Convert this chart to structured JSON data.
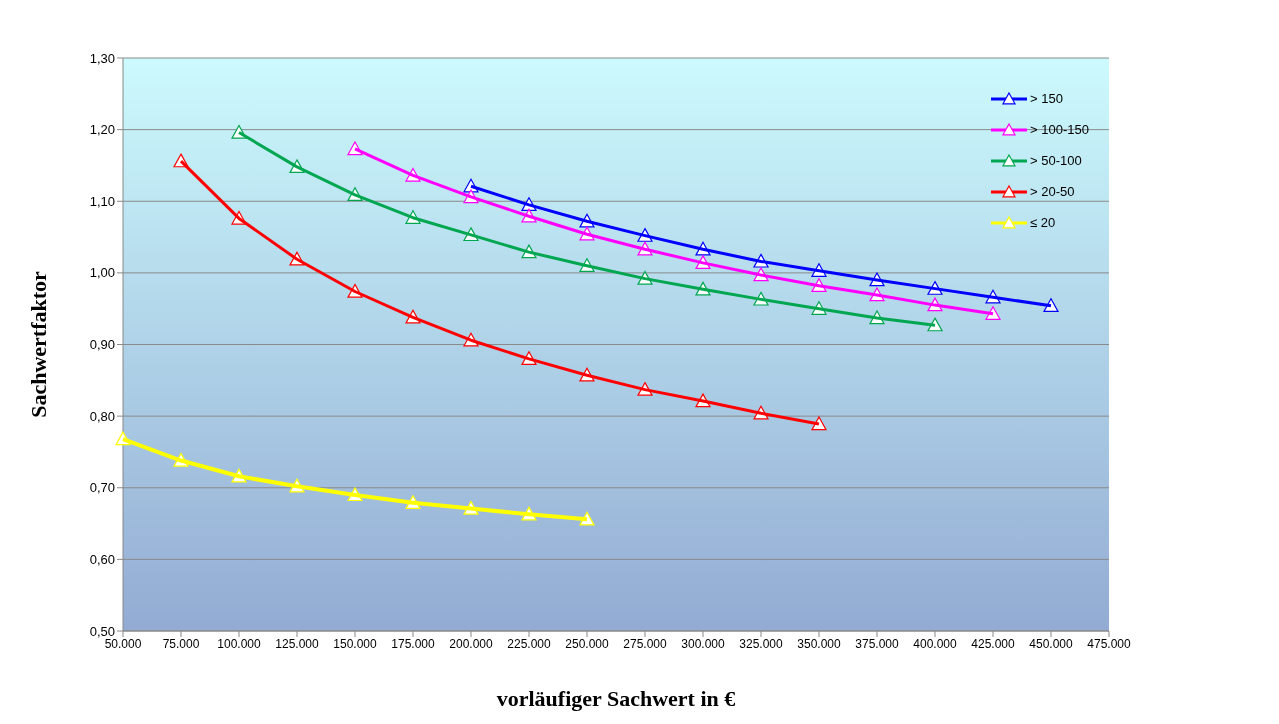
{
  "chart_data": {
    "type": "line",
    "xlabel": "vorläufiger Sachwert in €",
    "ylabel": "Sachwertfaktor",
    "xlim": [
      50000,
      475000
    ],
    "ylim": [
      0.5,
      1.3
    ],
    "xticks": [
      {
        "value": 50000,
        "label": "50.000"
      },
      {
        "value": 75000,
        "label": "75.000"
      },
      {
        "value": 100000,
        "label": "100.000"
      },
      {
        "value": 125000,
        "label": "125.000"
      },
      {
        "value": 150000,
        "label": "150.000"
      },
      {
        "value": 175000,
        "label": "175.000"
      },
      {
        "value": 200000,
        "label": "200.000"
      },
      {
        "value": 225000,
        "label": "225.000"
      },
      {
        "value": 250000,
        "label": "250.000"
      },
      {
        "value": 275000,
        "label": "275.000"
      },
      {
        "value": 300000,
        "label": "300.000"
      },
      {
        "value": 325000,
        "label": "325.000"
      },
      {
        "value": 350000,
        "label": "350.000"
      },
      {
        "value": 375000,
        "label": "375.000"
      },
      {
        "value": 400000,
        "label": "400.000"
      },
      {
        "value": 425000,
        "label": "425.000"
      },
      {
        "value": 450000,
        "label": "450.000"
      },
      {
        "value": 475000,
        "label": "475.000"
      }
    ],
    "yticks": [
      {
        "value": 0.5,
        "label": "0,50"
      },
      {
        "value": 0.6,
        "label": "0,60"
      },
      {
        "value": 0.7,
        "label": "0,70"
      },
      {
        "value": 0.8,
        "label": "0,80"
      },
      {
        "value": 0.9,
        "label": "0,90"
      },
      {
        "value": 1.0,
        "label": "1,00"
      },
      {
        "value": 1.1,
        "label": "1,10"
      },
      {
        "value": 1.2,
        "label": "1,20"
      },
      {
        "value": 1.3,
        "label": "1,30"
      }
    ],
    "grid": "y",
    "legend": "top right",
    "marker": "triangle",
    "line_style": "solid",
    "series": [
      {
        "name": "> 150",
        "color": "#0000ff",
        "x": [
          200000,
          225000,
          250000,
          275000,
          300000,
          325000,
          350000,
          375000,
          400000,
          425000,
          450000
        ],
        "values": [
          1.121,
          1.095,
          1.072,
          1.052,
          1.033,
          1.016,
          1.003,
          0.99,
          0.978,
          0.966,
          0.954
        ]
      },
      {
        "name": "> 100-150",
        "color": "#ff00ff",
        "x": [
          150000,
          175000,
          200000,
          225000,
          250000,
          275000,
          300000,
          325000,
          350000,
          375000,
          400000,
          425000
        ],
        "values": [
          1.173,
          1.136,
          1.106,
          1.079,
          1.054,
          1.033,
          1.014,
          0.997,
          0.982,
          0.969,
          0.955,
          0.943
        ]
      },
      {
        "name": "> 50-100",
        "color": "#00a650",
        "x": [
          100000,
          125000,
          150000,
          175000,
          200000,
          225000,
          250000,
          275000,
          300000,
          325000,
          350000,
          375000,
          400000
        ],
        "values": [
          1.196,
          1.148,
          1.109,
          1.077,
          1.053,
          1.029,
          1.01,
          0.992,
          0.977,
          0.963,
          0.95,
          0.937,
          0.927
        ]
      },
      {
        "name": "> 20-50",
        "color": "#ff0000",
        "x": [
          75000,
          100000,
          125000,
          150000,
          175000,
          200000,
          225000,
          250000,
          275000,
          300000,
          325000,
          350000
        ],
        "values": [
          1.156,
          1.076,
          1.019,
          0.974,
          0.938,
          0.906,
          0.88,
          0.857,
          0.837,
          0.821,
          0.804,
          0.789
        ]
      },
      {
        "name": "≤ 20",
        "color": "#ffff00",
        "x": [
          50000,
          75000,
          100000,
          125000,
          150000,
          175000,
          200000,
          225000,
          250000
        ],
        "values": [
          0.768,
          0.738,
          0.716,
          0.702,
          0.69,
          0.679,
          0.671,
          0.663,
          0.656
        ]
      }
    ]
  }
}
